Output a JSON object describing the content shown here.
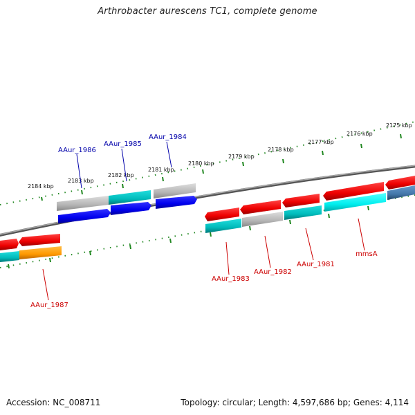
{
  "title": "Arthrobacter aurescens TC1, complete genome",
  "footer": {
    "accession": "Accession: NC_008711",
    "summary": "Topology: circular; Length: 4,597,686 bp; Genes: 4,114"
  },
  "scale": {
    "tick_labels": [
      "2184 kbp",
      "2183 kbp",
      "2182 kbp",
      "2181 kbp",
      "2180 kbp",
      "2179 kbp",
      "2178 kbp",
      "2177 kbp",
      "2176 kbp",
      "2175 kbp"
    ]
  },
  "genes": {
    "upper": [
      {
        "label": "AAur_1986",
        "color": "#0000aa"
      },
      {
        "label": "AAur_1985",
        "color": "#0000aa"
      },
      {
        "label": "AAur_1984",
        "color": "#0000aa"
      }
    ],
    "lower": [
      {
        "label": "AAur_1987",
        "color": "#cc0000"
      },
      {
        "label": "AAur_1983",
        "color": "#cc0000"
      },
      {
        "label": "AAur_1982",
        "color": "#cc0000"
      },
      {
        "label": "AAur_1981",
        "color": "#cc0000"
      },
      {
        "label": "mmsA",
        "color": "#cc0000"
      }
    ]
  },
  "colors": {
    "forward_cds": "#0000ee",
    "reverse_cds": "#ee0000",
    "cog_cyan": "#00cccc",
    "cog_gray": "#b8b8b8",
    "cog_orange": "#ff9900",
    "cog_lightcyan": "#00eeee",
    "cog_steelblue": "#4477aa",
    "backbone": "#888888",
    "ticks": "#228822"
  }
}
